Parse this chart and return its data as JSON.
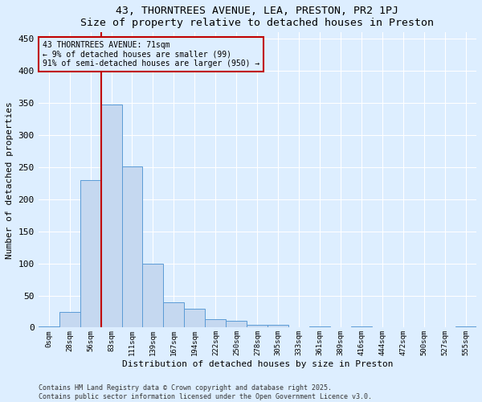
{
  "title1": "43, THORNTREES AVENUE, LEA, PRESTON, PR2 1PJ",
  "title2": "Size of property relative to detached houses in Preston",
  "xlabel": "Distribution of detached houses by size in Preston",
  "ylabel": "Number of detached properties",
  "categories": [
    "0sqm",
    "28sqm",
    "56sqm",
    "83sqm",
    "111sqm",
    "139sqm",
    "167sqm",
    "194sqm",
    "222sqm",
    "250sqm",
    "278sqm",
    "305sqm",
    "333sqm",
    "361sqm",
    "389sqm",
    "416sqm",
    "444sqm",
    "472sqm",
    "500sqm",
    "527sqm",
    "555sqm"
  ],
  "values": [
    2,
    25,
    230,
    348,
    251,
    100,
    40,
    30,
    13,
    10,
    4,
    4,
    0,
    2,
    0,
    2,
    0,
    0,
    0,
    0,
    2
  ],
  "bar_color": "#c5d8f0",
  "bar_edge_color": "#5b9bd5",
  "ylim": [
    0,
    460
  ],
  "yticks": [
    0,
    50,
    100,
    150,
    200,
    250,
    300,
    350,
    400,
    450
  ],
  "annotation_line1": "43 THORNTREES AVENUE: 71sqm",
  "annotation_line2": "← 9% of detached houses are smaller (99)",
  "annotation_line3": "91% of semi-detached houses are larger (950) →",
  "vline_x": 2.5,
  "vline_color": "#c00000",
  "annotation_box_color": "#c00000",
  "footer1": "Contains HM Land Registry data © Crown copyright and database right 2025.",
  "footer2": "Contains public sector information licensed under the Open Government Licence v3.0.",
  "bg_color": "#ddeeff",
  "grid_color": "#ffffff",
  "figsize": [
    6.0,
    5.0
  ],
  "dpi": 100
}
